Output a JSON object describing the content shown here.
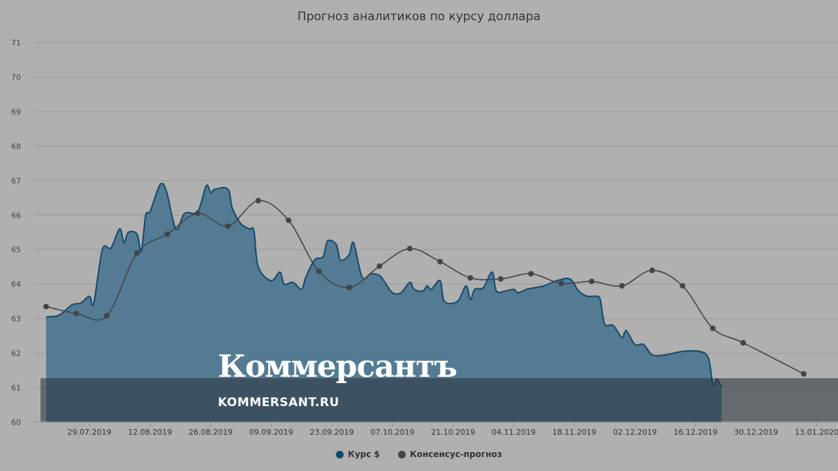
{
  "chart_data": {
    "type": "area",
    "title": "Прогноз аналитиков по курсу доллара",
    "xlabel": "",
    "ylabel": "",
    "ylim": [
      60,
      71
    ],
    "yticks": [
      60,
      61,
      62,
      63,
      64,
      65,
      66,
      67,
      68,
      69,
      70,
      71
    ],
    "x_tick_labels": [
      "29.07.2019",
      "12.08.2019",
      "26.08.2019",
      "09.09.2019",
      "23.09.2019",
      "07.10.2019",
      "21.10.2019",
      "04.11.2019",
      "18.11.2019",
      "02.12.2019",
      "16.12.2019",
      "30.12.2019",
      "13.01.2020"
    ],
    "grid": true,
    "legend_position": "bottom",
    "series": [
      {
        "name": "Курс $",
        "kind": "area",
        "color": "#0e4a6e",
        "points": [
          [
            "2019-07-19",
            63.05
          ],
          [
            "2019-07-22",
            63.1
          ],
          [
            "2019-07-25",
            63.4
          ],
          [
            "2019-07-27",
            63.45
          ],
          [
            "2019-07-29",
            63.65
          ],
          [
            "2019-07-30",
            63.45
          ],
          [
            "2019-08-01",
            65.0
          ],
          [
            "2019-08-03",
            65.05
          ],
          [
            "2019-08-05",
            65.6
          ],
          [
            "2019-08-06",
            65.2
          ],
          [
            "2019-08-07",
            65.5
          ],
          [
            "2019-08-09",
            65.45
          ],
          [
            "2019-08-10",
            64.95
          ],
          [
            "2019-08-11",
            66.0
          ],
          [
            "2019-08-12",
            66.1
          ],
          [
            "2019-08-14",
            66.8
          ],
          [
            "2019-08-15",
            66.9
          ],
          [
            "2019-08-16",
            66.6
          ],
          [
            "2019-08-18",
            65.6
          ],
          [
            "2019-08-20",
            66.05
          ],
          [
            "2019-08-23",
            66.1
          ],
          [
            "2019-08-25",
            66.85
          ],
          [
            "2019-08-26",
            66.65
          ],
          [
            "2019-08-27",
            66.75
          ],
          [
            "2019-08-30",
            66.75
          ],
          [
            "2019-08-31",
            66.2
          ],
          [
            "2019-09-02",
            65.75
          ],
          [
            "2019-09-04",
            65.6
          ],
          [
            "2019-09-05",
            65.55
          ],
          [
            "2019-09-06",
            64.5
          ],
          [
            "2019-09-09",
            64.1
          ],
          [
            "2019-09-11",
            64.35
          ],
          [
            "2019-09-12",
            64.0
          ],
          [
            "2019-09-14",
            64.05
          ],
          [
            "2019-09-16",
            63.85
          ],
          [
            "2019-09-17",
            64.2
          ],
          [
            "2019-09-19",
            64.7
          ],
          [
            "2019-09-21",
            64.8
          ],
          [
            "2019-09-22",
            65.25
          ],
          [
            "2019-09-24",
            65.15
          ],
          [
            "2019-09-25",
            64.7
          ],
          [
            "2019-09-27",
            64.85
          ],
          [
            "2019-09-28",
            65.2
          ],
          [
            "2019-09-30",
            64.2
          ],
          [
            "2019-10-02",
            64.3
          ],
          [
            "2019-10-04",
            64.25
          ],
          [
            "2019-10-05",
            64.1
          ],
          [
            "2019-10-07",
            63.75
          ],
          [
            "2019-10-09",
            63.75
          ],
          [
            "2019-10-11",
            64.05
          ],
          [
            "2019-10-12",
            63.85
          ],
          [
            "2019-10-14",
            63.8
          ],
          [
            "2019-10-15",
            63.95
          ],
          [
            "2019-10-16",
            63.85
          ],
          [
            "2019-10-18",
            64.1
          ],
          [
            "2019-10-19",
            63.5
          ],
          [
            "2019-10-22",
            63.5
          ],
          [
            "2019-10-24",
            63.95
          ],
          [
            "2019-10-25",
            63.55
          ],
          [
            "2019-10-26",
            63.85
          ],
          [
            "2019-10-28",
            63.9
          ],
          [
            "2019-10-30",
            64.35
          ],
          [
            "2019-10-31",
            63.8
          ],
          [
            "2019-11-02",
            63.8
          ],
          [
            "2019-11-04",
            63.85
          ],
          [
            "2019-11-05",
            63.75
          ],
          [
            "2019-11-07",
            63.85
          ],
          [
            "2019-11-09",
            63.9
          ],
          [
            "2019-11-11",
            63.95
          ],
          [
            "2019-11-14",
            64.1
          ],
          [
            "2019-11-17",
            64.15
          ],
          [
            "2019-11-19",
            63.8
          ],
          [
            "2019-11-21",
            63.65
          ],
          [
            "2019-11-23",
            63.65
          ],
          [
            "2019-11-24",
            63.55
          ],
          [
            "2019-11-25",
            62.85
          ],
          [
            "2019-11-27",
            62.8
          ],
          [
            "2019-11-29",
            62.45
          ],
          [
            "2019-11-30",
            62.65
          ],
          [
            "2019-12-02",
            62.25
          ],
          [
            "2019-12-04",
            62.25
          ],
          [
            "2019-12-06",
            61.95
          ],
          [
            "2019-12-09",
            61.95
          ],
          [
            "2019-12-13",
            62.05
          ],
          [
            "2019-12-17",
            62.05
          ],
          [
            "2019-12-19",
            61.85
          ],
          [
            "2019-12-20",
            61.1
          ],
          [
            "2019-12-21",
            61.25
          ],
          [
            "2019-12-22",
            61.0
          ]
        ]
      },
      {
        "name": "Консенсус-прогноз",
        "kind": "line",
        "color": "#444444",
        "points": [
          [
            "2019-07-19",
            63.35
          ],
          [
            "2019-07-26",
            63.15
          ],
          [
            "2019-08-02",
            63.08
          ],
          [
            "2019-08-09",
            64.9
          ],
          [
            "2019-08-16",
            65.45
          ],
          [
            "2019-08-23",
            66.05
          ],
          [
            "2019-08-30",
            65.68
          ],
          [
            "2019-09-06",
            66.42
          ],
          [
            "2019-09-13",
            65.85
          ],
          [
            "2019-09-20",
            64.37
          ],
          [
            "2019-09-27",
            63.9
          ],
          [
            "2019-10-04",
            64.52
          ],
          [
            "2019-10-11",
            65.03
          ],
          [
            "2019-10-18",
            64.65
          ],
          [
            "2019-10-25",
            64.18
          ],
          [
            "2019-11-01",
            64.15
          ],
          [
            "2019-11-08",
            64.3
          ],
          [
            "2019-11-15",
            64.02
          ],
          [
            "2019-11-22",
            64.08
          ],
          [
            "2019-11-29",
            63.95
          ],
          [
            "2019-12-06",
            64.4
          ],
          [
            "2019-12-13",
            63.95
          ],
          [
            "2019-12-20",
            62.72
          ],
          [
            "2019-12-27",
            62.3
          ],
          [
            "2020-01-10",
            61.4
          ]
        ]
      }
    ]
  },
  "watermark": {
    "logo_text": "Коммерсантъ",
    "url_text": "KOMMERSANT.RU"
  },
  "colors": {
    "background": "#b0b0b0",
    "area_fill": "#4f7891",
    "area_line": "#0e4a6e",
    "consensus": "#444444",
    "grid": "#9a9a9a"
  }
}
